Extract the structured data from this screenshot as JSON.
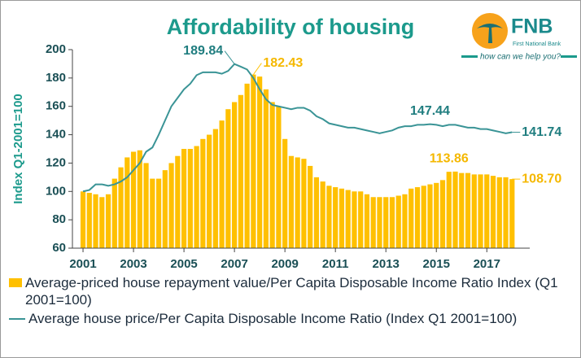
{
  "chart_data": {
    "type": "bar_line",
    "title": "Affordability of housing",
    "y_label": "Index Q1-2001=100",
    "x": [
      2001,
      2001.25,
      2001.5,
      2001.75,
      2002,
      2002.25,
      2002.5,
      2002.75,
      2003,
      2003.25,
      2003.5,
      2003.75,
      2004,
      2004.25,
      2004.5,
      2004.75,
      2005,
      2005.25,
      2005.5,
      2005.75,
      2006,
      2006.25,
      2006.5,
      2006.75,
      2007,
      2007.25,
      2007.5,
      2007.75,
      2008,
      2008.25,
      2008.5,
      2008.75,
      2009,
      2009.25,
      2009.5,
      2009.75,
      2010,
      2010.25,
      2010.5,
      2010.75,
      2011,
      2011.25,
      2011.5,
      2011.75,
      2012,
      2012.25,
      2012.5,
      2012.75,
      2013,
      2013.25,
      2013.5,
      2013.75,
      2014,
      2014.25,
      2014.5,
      2014.75,
      2015,
      2015.25,
      2015.5,
      2015.75,
      2016,
      2016.25,
      2016.5,
      2016.75,
      2017,
      2017.25,
      2017.5,
      2017.75,
      2018
    ],
    "series": [
      {
        "name": "Average-priced house repayment value/Per Capita Disposable Income Ratio Index (Q1 2001=100)",
        "kind": "bar",
        "color": "#ffc000",
        "label_color": "#f5b800",
        "values": [
          100,
          99,
          98,
          96,
          98,
          109,
          117,
          124,
          128,
          129,
          120,
          109,
          109,
          115,
          120,
          125,
          130,
          130,
          132,
          137,
          140,
          144,
          150,
          158,
          163,
          168,
          176,
          182.43,
          181,
          172,
          163,
          160,
          137,
          125,
          124,
          123,
          118,
          110,
          107,
          104,
          103,
          102,
          101,
          100,
          100,
          98,
          96,
          96,
          96,
          96,
          97,
          98,
          102,
          103,
          104,
          105,
          106,
          108,
          113.86,
          114,
          113,
          113,
          112,
          112,
          112,
          111,
          110,
          110,
          108.7
        ],
        "value_labels": [
          null,
          null,
          null,
          null,
          null,
          null,
          null,
          null,
          null,
          null,
          null,
          null,
          null,
          null,
          null,
          null,
          null,
          null,
          null,
          null,
          null,
          null,
          null,
          null,
          null,
          null,
          null,
          "182.43",
          null,
          null,
          null,
          null,
          null,
          null,
          null,
          null,
          null,
          null,
          null,
          null,
          null,
          null,
          null,
          null,
          null,
          null,
          null,
          null,
          null,
          null,
          null,
          null,
          null,
          null,
          null,
          null,
          null,
          null,
          "113.86",
          null,
          null,
          null,
          null,
          null,
          null,
          null,
          null,
          null,
          "108.70"
        ]
      },
      {
        "name": "Average house price/Per Capita Disposable Income Ratio (Index Q1 2001=100)",
        "kind": "line",
        "color": "#3a9496",
        "label_color": "#1f7d7f",
        "values": [
          100,
          101,
          105,
          105,
          104,
          105,
          107,
          110,
          115,
          120,
          128,
          131,
          140,
          150,
          160,
          166,
          172,
          176,
          182,
          184,
          184,
          184,
          183,
          185,
          189.84,
          188,
          186,
          180,
          172,
          165,
          161,
          160,
          159,
          158,
          159,
          159,
          157,
          153,
          151,
          148,
          147,
          146,
          145,
          145,
          144,
          143,
          142,
          141,
          142,
          143,
          145,
          146,
          146,
          147,
          147,
          147.44,
          147,
          146,
          147,
          147,
          146,
          145,
          145,
          144,
          144,
          143,
          142,
          141,
          141.74
        ],
        "value_labels": [
          null,
          null,
          null,
          null,
          null,
          null,
          null,
          null,
          null,
          null,
          null,
          null,
          null,
          null,
          null,
          null,
          null,
          null,
          null,
          null,
          null,
          null,
          null,
          null,
          "189.84",
          null,
          null,
          null,
          null,
          null,
          null,
          null,
          null,
          null,
          null,
          null,
          null,
          null,
          null,
          null,
          null,
          null,
          null,
          null,
          null,
          null,
          null,
          null,
          null,
          null,
          null,
          null,
          null,
          null,
          null,
          "147.44",
          null,
          null,
          null,
          null,
          null,
          null,
          null,
          null,
          null,
          null,
          null,
          null,
          "141.74"
        ]
      }
    ],
    "xlim": [
      2000.58,
      2018.7
    ],
    "xticks": [
      2001,
      2003,
      2005,
      2007,
      2009,
      2011,
      2013,
      2015,
      2017
    ],
    "ylim": [
      60,
      200
    ],
    "yticks": [
      60,
      80,
      100,
      120,
      140,
      160,
      180,
      200
    ],
    "legend": "bottom"
  },
  "logo": {
    "name": "FNB",
    "subtitle": "First National Bank",
    "slogan": "how can we help you?"
  }
}
